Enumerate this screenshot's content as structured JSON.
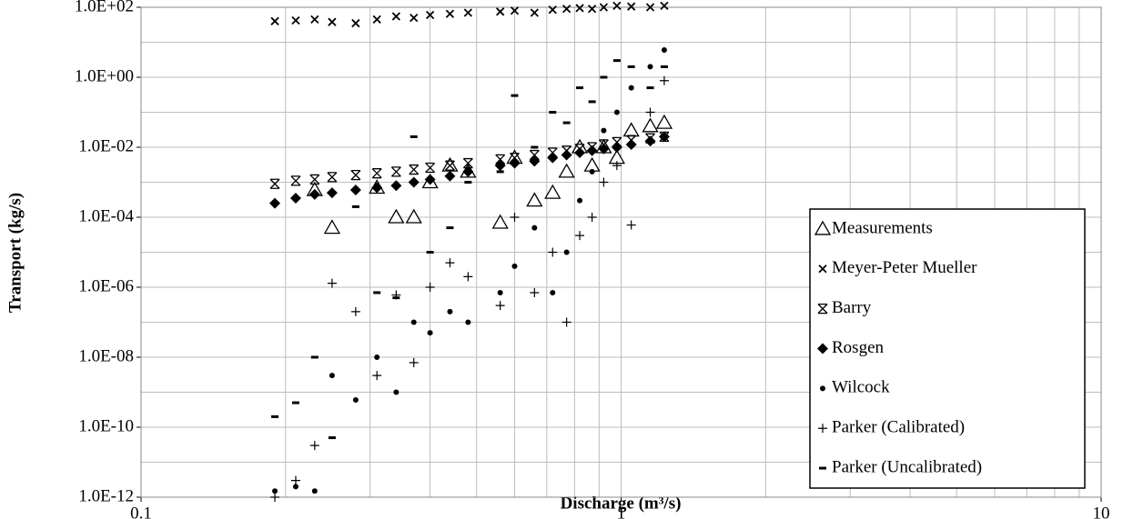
{
  "chart_data": {
    "type": "scatter",
    "xlabel": "Discharge (m³/s)",
    "ylabel": "Transport (kg/s)",
    "xscale": "log",
    "yscale": "log",
    "grid": true,
    "legend": "lower right",
    "xlim": [
      0.1,
      10
    ],
    "ylim": [
      1e-12,
      100
    ],
    "xticks": [
      0.1,
      1,
      10
    ],
    "minor_xticks": [
      0.2,
      0.3,
      0.4,
      0.5,
      0.6,
      0.7,
      0.8,
      0.9,
      2,
      3,
      4,
      5,
      6,
      7,
      8,
      9
    ],
    "yticks": [
      {
        "value": 1e-12,
        "label": "1.0E-12"
      },
      {
        "value": 1e-10,
        "label": "1.0E-10"
      },
      {
        "value": 1e-08,
        "label": "1.0E-08"
      },
      {
        "value": 1e-06,
        "label": "1.0E-06"
      },
      {
        "value": 0.0001,
        "label": "1.0E-04"
      },
      {
        "value": 0.01,
        "label": "1.0E-02"
      },
      {
        "value": 1,
        "label": "1.0E+00"
      },
      {
        "value": 100,
        "label": "1.0E+02"
      }
    ],
    "minor_yticks": [
      1e-11,
      1e-09,
      1e-07,
      1e-05,
      0.001,
      0.1,
      10
    ],
    "x": [
      0.19,
      0.21,
      0.23,
      0.25,
      0.28,
      0.31,
      0.34,
      0.37,
      0.4,
      0.44,
      0.48,
      0.56,
      0.6,
      0.66,
      0.72,
      0.77,
      0.82,
      0.87,
      0.92,
      0.98,
      1.05,
      1.15,
      1.23
    ],
    "series": [
      {
        "name": "Measurements",
        "marker": "triangle",
        "color": "#000000",
        "values": [
          null,
          null,
          0.0006,
          5e-05,
          null,
          0.0007,
          0.0001,
          0.0001,
          0.001,
          0.003,
          0.002,
          7e-05,
          0.005,
          0.0003,
          0.0005,
          0.002,
          0.01,
          0.003,
          0.01,
          0.005,
          0.03,
          0.04,
          0.05
        ]
      },
      {
        "name": "Meyer-Peter Mueller",
        "marker": "x",
        "color": "#000000",
        "values": [
          40,
          42,
          45,
          38,
          35,
          45,
          55,
          50,
          60,
          65,
          70,
          75,
          80,
          70,
          85,
          90,
          95,
          90,
          100,
          110,
          105,
          100,
          110
        ]
      },
      {
        "name": "Barry",
        "marker": "asterisk",
        "color": "#000000",
        "values": [
          0.0009,
          0.0011,
          0.0012,
          0.0014,
          0.0016,
          0.0018,
          0.002,
          0.0023,
          0.0026,
          0.003,
          0.0035,
          0.0045,
          0.005,
          0.006,
          0.007,
          0.008,
          0.009,
          0.01,
          0.012,
          0.014,
          0.016,
          0.018,
          0.02
        ]
      },
      {
        "name": "Rosgen",
        "marker": "diamond",
        "color": "#000000",
        "values": [
          0.00025,
          0.00035,
          0.00045,
          0.0005,
          0.0006,
          0.0007,
          0.0008,
          0.001,
          0.0012,
          0.0015,
          0.002,
          0.003,
          0.0035,
          0.004,
          0.005,
          0.006,
          0.007,
          0.008,
          0.009,
          0.01,
          0.012,
          0.015,
          0.02
        ]
      },
      {
        "name": "Wilcock",
        "marker": "circle",
        "color": "#000000",
        "values": [
          1.5e-12,
          2e-12,
          1.5e-12,
          3e-09,
          6e-10,
          1e-08,
          1e-09,
          1e-07,
          5e-08,
          2e-07,
          1e-07,
          7e-07,
          4e-06,
          5e-05,
          7e-07,
          1e-05,
          0.0003,
          0.002,
          0.03,
          0.1,
          0.5,
          2,
          6
        ]
      },
      {
        "name": "Parker (Calibrated)",
        "marker": "plus",
        "color": "#000000",
        "values": [
          1e-12,
          3e-12,
          3e-11,
          1.3e-06,
          2e-07,
          3e-09,
          6e-07,
          7e-09,
          1e-06,
          5e-06,
          2e-06,
          3e-07,
          0.0001,
          7e-07,
          1e-05,
          1e-07,
          3e-05,
          0.0001,
          0.001,
          0.003,
          6e-05,
          0.1,
          0.8
        ]
      },
      {
        "name": "Parker (Uncalibrated)",
        "marker": "dash",
        "color": "#000000",
        "values": [
          2e-10,
          5e-10,
          1e-08,
          5e-11,
          0.0002,
          7e-07,
          5e-07,
          0.02,
          1e-05,
          5e-05,
          0.001,
          0.002,
          0.3,
          0.01,
          0.1,
          0.05,
          0.5,
          0.2,
          1,
          3,
          2,
          0.5,
          2
        ]
      }
    ]
  }
}
